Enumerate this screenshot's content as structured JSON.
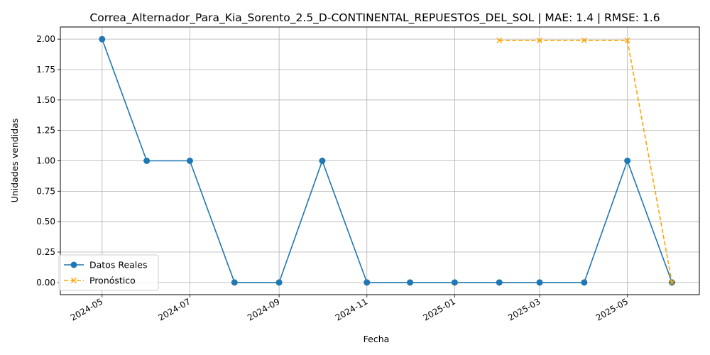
{
  "chart_data": {
    "type": "line",
    "title": "Correa_Alternador_Para_Kia_Sorento_2.5_D-CONTINENTAL_REPUESTOS_DEL_SOL | MAE: 1.4 | RMSE: 1.6",
    "xlabel": "Fecha",
    "ylabel": "Unidades vendidas",
    "x_tick_labels": [
      "2024-05",
      "2024-07",
      "2024-09",
      "2024-11",
      "2025-01",
      "2025-03",
      "2025-05"
    ],
    "y_tick_labels": [
      "0.00",
      "0.25",
      "0.50",
      "0.75",
      "1.00",
      "1.25",
      "1.50",
      "1.75",
      "2.00"
    ],
    "y_ticks": [
      0,
      0.25,
      0.5,
      0.75,
      1.0,
      1.25,
      1.5,
      1.75,
      2.0
    ],
    "ylim": [
      -0.1,
      2.1
    ],
    "xlim": [
      "2024-04-02",
      "2025-06-20"
    ],
    "grid": true,
    "legend_position": "lower-left",
    "series": [
      {
        "name": "Datos Reales",
        "color": "#1f77b4",
        "line_style": "solid",
        "marker": "circle",
        "x": [
          "2024-05-01",
          "2024-06-01",
          "2024-07-01",
          "2024-08-01",
          "2024-09-01",
          "2024-10-01",
          "2024-11-01",
          "2024-12-01",
          "2025-01-01",
          "2025-02-01",
          "2025-03-01",
          "2025-04-01",
          "2025-05-01",
          "2025-06-01"
        ],
        "values": [
          2,
          1,
          1,
          0,
          0,
          1,
          0,
          0,
          0,
          0,
          0,
          0,
          1,
          0
        ]
      },
      {
        "name": "Pronóstico",
        "color": "#ffa500",
        "line_style": "dashed",
        "marker": "x",
        "x": [
          "2025-02-01",
          "2025-03-01",
          "2025-04-01",
          "2025-05-01",
          "2025-06-01"
        ],
        "values": [
          1.99,
          1.99,
          1.99,
          1.99,
          0
        ]
      }
    ]
  }
}
